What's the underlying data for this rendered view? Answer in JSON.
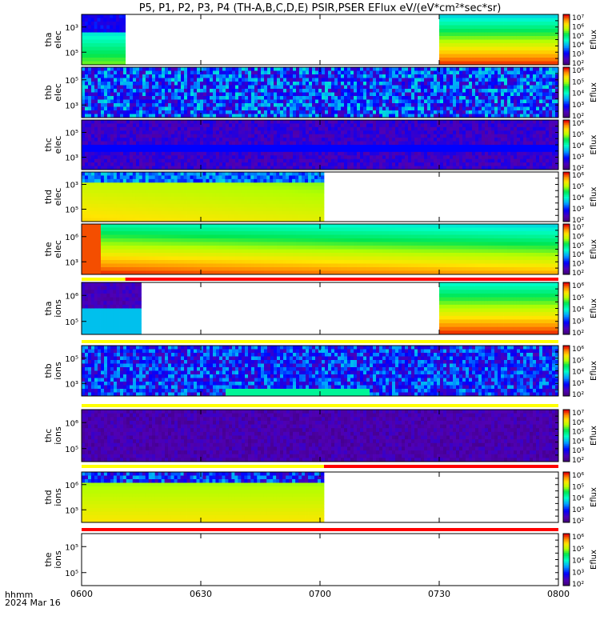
{
  "title": "P5, P1, P2, P3, P4 (TH-A,B,C,D,E) PSIR,PSER EFlux eV/(eV*cm²*sec*sr)",
  "time_axis": {
    "ticks": [
      "0600",
      "0630",
      "0700",
      "0730",
      "0800"
    ],
    "label_line1": "hhmm",
    "label_line2": "2024 Mar 16"
  },
  "colorbar_label": "Eflux",
  "chart_data": {
    "type": "heatmap",
    "x_range": [
      "06:00",
      "08:00"
    ],
    "x_unit": "hhmm",
    "y_scale": "log",
    "z_scale": "log",
    "colormap": "rainbow (purple-blue-cyan-green-yellow-red)",
    "panels": [
      {
        "probe": "tha",
        "species": "elec",
        "ytick_labels": [
          "10³",
          "10⁵"
        ],
        "cbar_tick_labels": [
          "10⁷",
          "10⁶",
          "10⁵",
          "10⁴",
          "10³",
          "10²"
        ],
        "coverage": [
          [
            "06:00",
            "06:11"
          ],
          [
            "07:30",
            "08:00"
          ]
        ]
      },
      {
        "probe": "thb",
        "species": "elec",
        "ytick_labels": [
          "10⁵",
          "10³"
        ],
        "cbar_tick_labels": [
          "10⁶",
          "10⁵",
          "10⁴",
          "10³",
          "10²"
        ],
        "coverage": [
          [
            "06:00",
            "08:00"
          ]
        ]
      },
      {
        "probe": "thc",
        "species": "elec",
        "ytick_labels": [
          "10⁵",
          "10³"
        ],
        "cbar_tick_labels": [
          "10⁶",
          "10⁵",
          "10⁴",
          "10³",
          "10²"
        ],
        "coverage": [
          [
            "06:00",
            "08:00"
          ]
        ]
      },
      {
        "probe": "thd",
        "species": "elec",
        "ytick_labels": [
          "10³",
          "10⁵"
        ],
        "cbar_tick_labels": [
          "10⁶",
          "10⁵",
          "10⁴",
          "10³",
          "10²"
        ],
        "coverage": [
          [
            "06:00",
            "07:01"
          ]
        ]
      },
      {
        "probe": "the",
        "species": "elec",
        "ytick_labels": [
          "10⁶",
          "10³"
        ],
        "cbar_tick_labels": [
          "10⁷",
          "10⁶",
          "10⁵",
          "10⁴",
          "10³",
          "10²"
        ],
        "coverage": [
          [
            "06:00",
            "08:00"
          ]
        ]
      },
      {
        "probe": "tha",
        "species": "ions",
        "ytick_labels": [
          "10⁶",
          "10⁵"
        ],
        "cbar_tick_labels": [
          "10⁶",
          "10⁵",
          "10⁴",
          "10³",
          "10²"
        ],
        "coverage": [
          [
            "06:00",
            "06:15"
          ],
          [
            "07:30",
            "08:00"
          ]
        ]
      },
      {
        "probe": "thb",
        "species": "ions",
        "ytick_labels": [
          "10⁵",
          "10³"
        ],
        "cbar_tick_labels": [
          "10⁶",
          "10⁵",
          "10⁴",
          "10³",
          "10²"
        ],
        "coverage": [
          [
            "06:00",
            "08:00"
          ]
        ]
      },
      {
        "probe": "thc",
        "species": "ions",
        "ytick_labels": [
          "10⁶",
          "10⁵"
        ],
        "cbar_tick_labels": [
          "10⁷",
          "10⁶",
          "10⁵",
          "10⁴",
          "10³",
          "10²"
        ],
        "coverage": [
          [
            "06:00",
            "08:00"
          ]
        ]
      },
      {
        "probe": "thd",
        "species": "ions",
        "ytick_labels": [
          "10⁶",
          "10⁵"
        ],
        "cbar_tick_labels": [
          "10⁶",
          "10⁵",
          "10⁴",
          "10³",
          "10²"
        ],
        "coverage": [
          [
            "06:00",
            "07:01"
          ]
        ]
      },
      {
        "probe": "the",
        "species": "ions",
        "ytick_labels": [
          "10⁵",
          "10⁵"
        ],
        "cbar_tick_labels": [
          "10⁶",
          "10⁵",
          "10⁴",
          "10³",
          "10²"
        ],
        "coverage": []
      }
    ],
    "status_bars": [
      {
        "segments": [
          {
            "from": "06:00",
            "to": "06:11",
            "color": "#ffff00"
          },
          {
            "from": "06:11",
            "to": "08:00",
            "color": "#ff0000"
          }
        ]
      },
      {
        "segments": [
          {
            "from": "06:00",
            "to": "08:00",
            "color": "#ffff00"
          }
        ]
      },
      {
        "segments": [
          {
            "from": "06:00",
            "to": "08:00",
            "color": "#ffff00"
          }
        ]
      },
      {
        "segments": [
          {
            "from": "06:00",
            "to": "07:01",
            "color": "#ffff00"
          },
          {
            "from": "07:01",
            "to": "08:00",
            "color": "#ff0000"
          }
        ]
      },
      {
        "segments": [
          {
            "from": "06:00",
            "to": "08:00",
            "color": "#ff0000"
          }
        ]
      }
    ]
  }
}
